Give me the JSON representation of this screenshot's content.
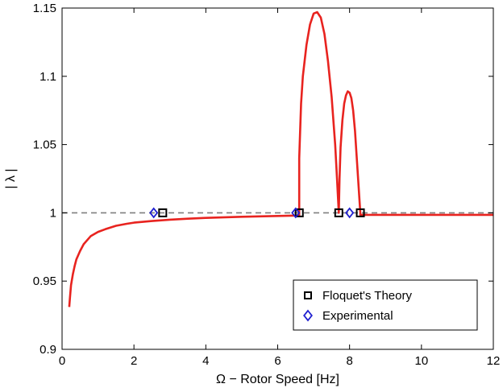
{
  "chart_data": {
    "type": "line",
    "title": "",
    "xlabel": "Ω − Rotor Speed [Hz]",
    "ylabel": "| λ |",
    "xlim": [
      0,
      12
    ],
    "ylim": [
      0.9,
      1.15
    ],
    "xticks": [
      0,
      2,
      4,
      6,
      8,
      10,
      12
    ],
    "xtick_labels": [
      "0",
      "2",
      "4",
      "6",
      "8",
      "10",
      "12"
    ],
    "yticks": [
      0.9,
      0.95,
      1.0,
      1.05,
      1.1,
      1.15
    ],
    "ytick_labels": [
      "0.9",
      "0.95",
      "1",
      "1.05",
      "1.1",
      "1.15"
    ],
    "grid": false,
    "legend_position": "bottom-right",
    "reference_line": {
      "y": 1.0,
      "style": "dashed",
      "color": "#7f7f7f"
    },
    "series": [
      {
        "type": "line",
        "color": "#e8231f",
        "x": [
          0.2,
          0.22,
          0.25,
          0.3,
          0.35,
          0.4,
          0.5,
          0.6,
          0.7,
          0.8,
          1.0,
          1.2,
          1.5,
          1.8,
          2.0,
          2.5,
          3.0,
          3.5,
          4.0,
          5.0,
          6.0,
          6.5,
          6.6,
          6.6,
          6.6,
          6.65,
          6.7,
          6.8,
          6.9,
          7.0,
          7.1,
          7.2,
          7.3,
          7.4,
          7.5,
          7.6,
          7.65,
          7.68,
          7.7,
          7.7,
          7.72,
          7.75,
          7.8,
          7.85,
          7.9,
          7.95,
          8.0,
          8.05,
          8.1,
          8.15,
          8.2,
          8.25,
          8.28,
          8.3,
          8.3,
          8.5,
          9.0,
          10.0,
          11.0,
          12.0
        ],
        "y": [
          0.931,
          0.938,
          0.947,
          0.955,
          0.961,
          0.966,
          0.972,
          0.977,
          0.98,
          0.983,
          0.986,
          0.988,
          0.9905,
          0.992,
          0.9928,
          0.994,
          0.995,
          0.9957,
          0.9963,
          0.9971,
          0.9977,
          0.998,
          0.998,
          1.0,
          1.04,
          1.08,
          1.1,
          1.123,
          1.138,
          1.146,
          1.147,
          1.143,
          1.131,
          1.111,
          1.085,
          1.05,
          1.025,
          1.01,
          1.0,
          1.0,
          1.025,
          1.048,
          1.068,
          1.08,
          1.086,
          1.089,
          1.088,
          1.084,
          1.075,
          1.06,
          1.04,
          1.02,
          1.008,
          1.0,
          0.9985,
          0.9985,
          0.9985,
          0.9985,
          0.9985,
          0.9985
        ]
      },
      {
        "name": "Floquet's Theory",
        "type": "scatter",
        "marker": "square",
        "color": "#000000",
        "x": [
          2.8,
          6.6,
          7.7,
          8.3
        ],
        "y": [
          1.0,
          1.0,
          1.0,
          1.0
        ]
      },
      {
        "name": "Experimental",
        "type": "scatter",
        "marker": "diamond",
        "color": "#1f1fd0",
        "x": [
          2.55,
          6.5,
          8.0
        ],
        "y": [
          1.0,
          1.0,
          1.0
        ]
      }
    ]
  }
}
